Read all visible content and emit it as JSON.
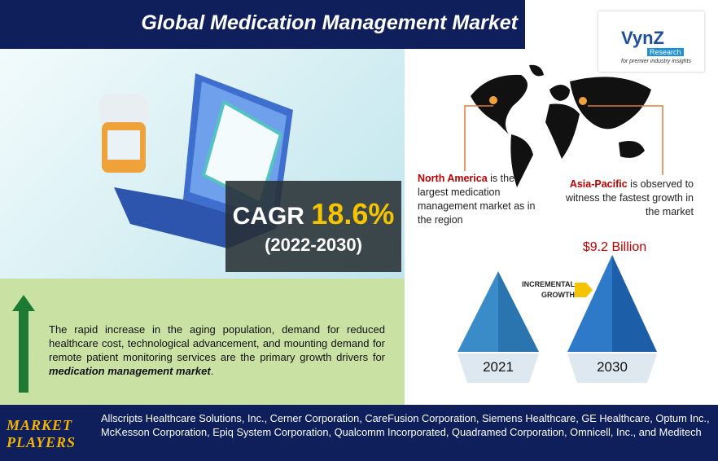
{
  "header": {
    "title": "Global Medication Management Market"
  },
  "logo": {
    "name": "VynZ",
    "sub": "Research",
    "tagline": "for premier industry insights"
  },
  "cagr": {
    "label": "CAGR",
    "value": "18.6%",
    "period": "(2022-2030)"
  },
  "drivers": {
    "text": "The rapid increase in the aging population, demand for reduced healthcare cost, technological advancement, and mounting demand for remote patient monitoring services are the primary growth drivers for ",
    "emphasis": "medication management market",
    "end": "."
  },
  "regions": [
    {
      "name": "North America",
      "text": " is the largest medication management market as in the region"
    },
    {
      "name": "Asia-Pacific",
      "text": " is observed to witness the fastest growth in the market"
    }
  ],
  "growth": {
    "value_2030": "$9.2 Billion",
    "label": [
      "INCREMENTAL",
      "GROWTH"
    ],
    "years": [
      "2021",
      "2030"
    ]
  },
  "players": {
    "label": [
      "MARKET",
      "PLAYERS"
    ],
    "list": "Allscripts Healthcare Solutions, Inc., Cerner Corporation, CareFusion Corporation, Siemens Healthcare, GE Healthcare, Optum Inc., McKesson Corporation, Epiq System Corporation, Qualcomm Incorporated, Quadramed Corporation, Omnicell, Inc., and Meditech"
  }
}
